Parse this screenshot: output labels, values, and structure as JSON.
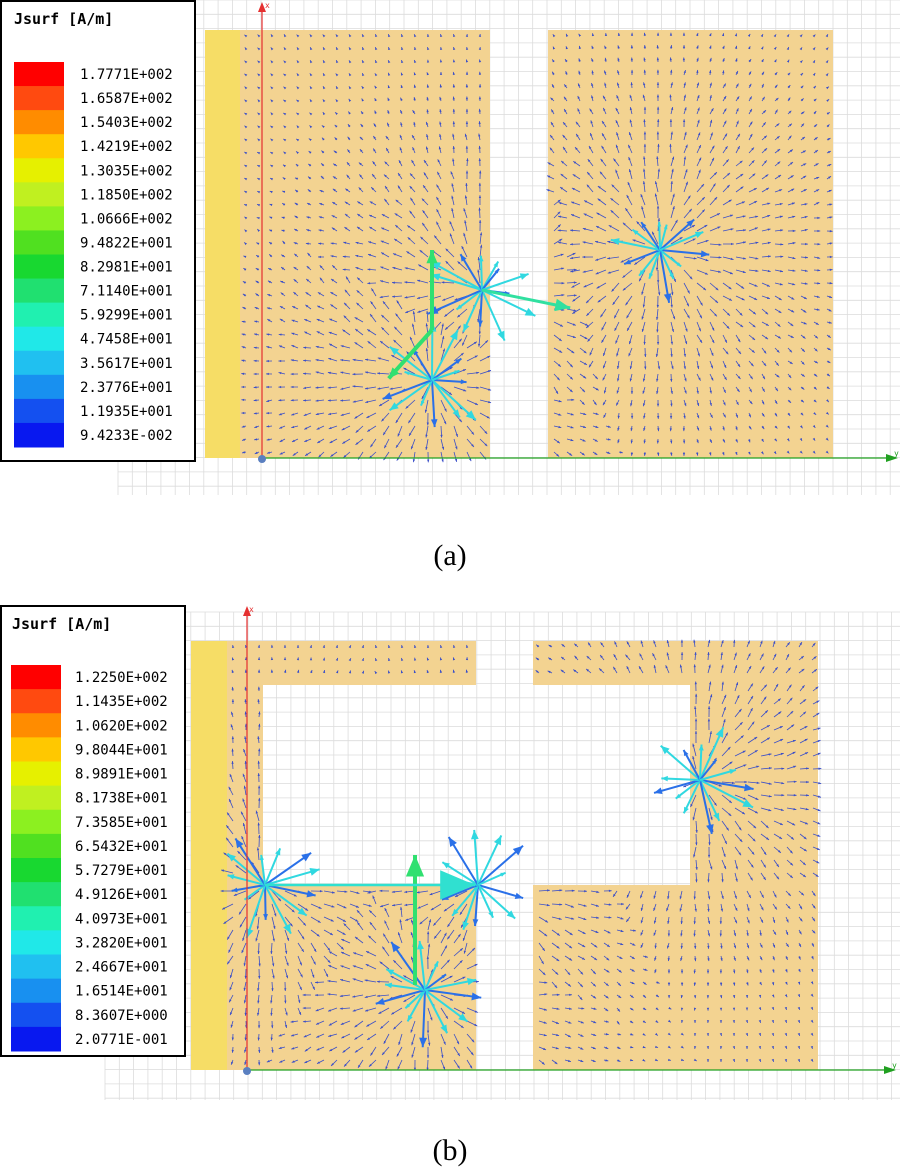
{
  "panels": [
    {
      "legend": {
        "title": "Jsurf [A/m]",
        "values": [
          "1.7771E+002",
          "1.6587E+002",
          "1.5403E+002",
          "1.4219E+002",
          "1.3035E+002",
          "1.1850E+002",
          "1.0666E+002",
          "9.4822E+001",
          "8.2981E+001",
          "7.1140E+001",
          "5.9299E+001",
          "4.7458E+001",
          "3.5617E+001",
          "2.3776E+001",
          "1.1935E+001",
          "9.4233E-002"
        ]
      },
      "axis_labels": {
        "x": "x",
        "y": "y"
      },
      "caption": "(a)"
    },
    {
      "legend": {
        "title": "Jsurf [A/m]",
        "values": [
          "1.2250E+002",
          "1.1435E+002",
          "1.0620E+002",
          "9.8044E+001",
          "8.9891E+001",
          "8.1738E+001",
          "7.3585E+001",
          "6.5432E+001",
          "5.7279E+001",
          "4.9126E+001",
          "4.0973E+001",
          "3.2820E+001",
          "2.4667E+001",
          "1.6514E+001",
          "8.3607E+000",
          "2.0771E-001"
        ]
      },
      "axis_labels": {
        "x": "x",
        "y": "y"
      },
      "caption": "(b)"
    }
  ],
  "legend_colors": [
    "#ff0000",
    "#ff4a10",
    "#ff8c00",
    "#ffc800",
    "#e6f000",
    "#c0f020",
    "#8cf020",
    "#50e020",
    "#18d830",
    "#20e070",
    "#20f0b0",
    "#20e8e8",
    "#20c0f0",
    "#1890f0",
    "#1450f0",
    "#0818f0"
  ]
}
